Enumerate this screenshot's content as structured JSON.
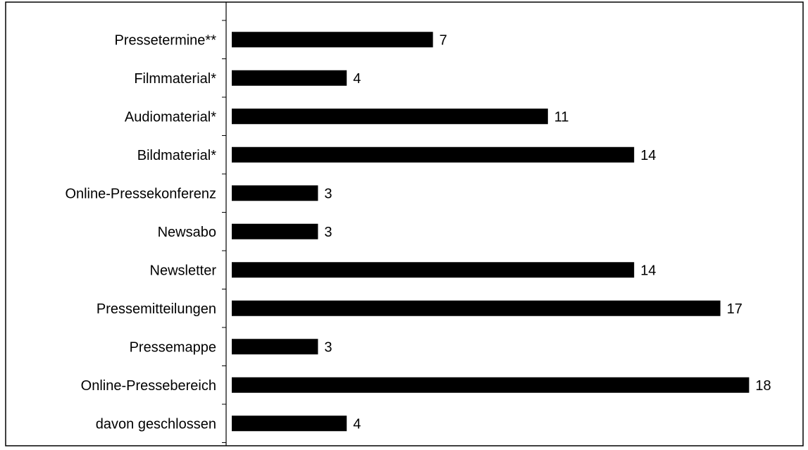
{
  "chart_data": {
    "type": "bar",
    "orientation": "horizontal",
    "categories": [
      "Pressetermine**",
      "Filmmaterial*",
      "Audiomaterial*",
      "Bildmaterial*",
      "Online-Pressekonferenz",
      "Newsabo",
      "Newsletter",
      "Pressemitteilungen",
      "Pressemappe",
      "Online-Pressebereich",
      "davon geschlossen"
    ],
    "values": [
      7,
      4,
      11,
      14,
      3,
      3,
      14,
      17,
      3,
      18,
      4
    ],
    "title": "",
    "xlabel": "",
    "ylabel": "",
    "xlim": [
      0,
      20
    ],
    "grid": false,
    "legend": "none",
    "bar_color": "#000000",
    "axis_color": "#000000",
    "border_color": "#000000"
  }
}
